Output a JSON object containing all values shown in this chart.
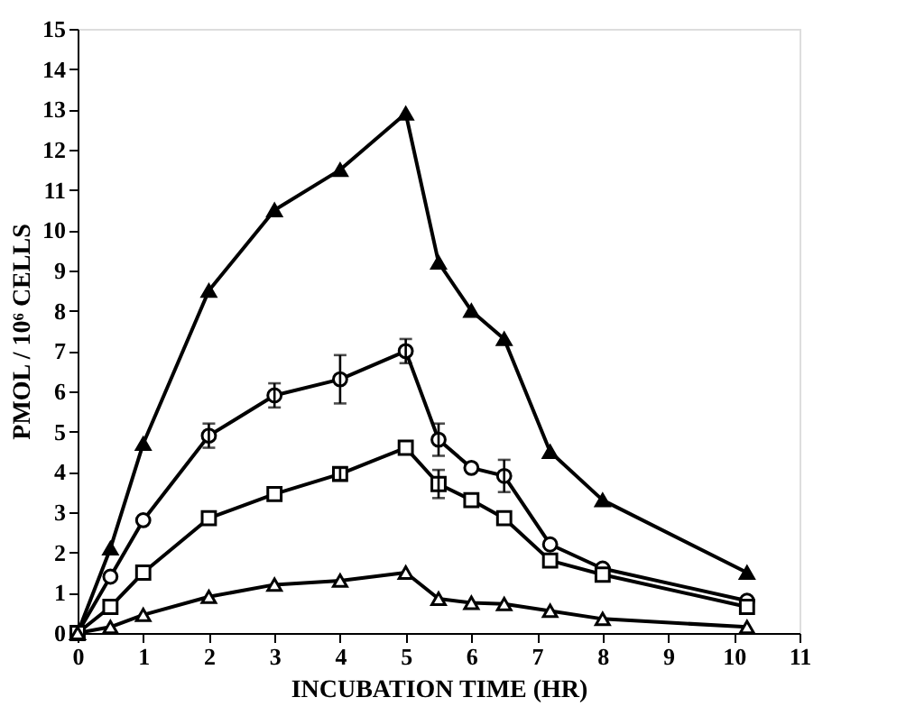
{
  "chart_data": {
    "type": "line",
    "xlabel": "INCUBATION TIME (HR)",
    "ylabel": "PMOL / 10⁶ CELLS",
    "xlim": [
      0,
      11
    ],
    "xticks": [
      0,
      1,
      2,
      3,
      4,
      5,
      6,
      7,
      8,
      9,
      10,
      11
    ],
    "ylim": [
      0,
      15
    ],
    "yticks": [
      0,
      1,
      2,
      3,
      4,
      5,
      6,
      7,
      8,
      9,
      10,
      11,
      12,
      13,
      14,
      15
    ],
    "grid": false,
    "legend": false,
    "line_style": "solid",
    "x": [
      0,
      0.5,
      1,
      2,
      3,
      4,
      5,
      5.5,
      6,
      6.5,
      7.2,
      8,
      10.2
    ],
    "series": [
      {
        "color": "#000000",
        "marker": "triangle",
        "values": [
          0,
          2.1,
          4.7,
          8.5,
          10.5,
          11.5,
          12.9,
          9.2,
          8.0,
          7.3,
          4.5,
          3.3,
          1.5
        ]
      },
      {
        "color": "#000000",
        "marker": "circle",
        "values": [
          0,
          1.4,
          2.8,
          4.9,
          5.9,
          6.3,
          7.0,
          4.8,
          4.1,
          3.9,
          2.2,
          1.6,
          0.8
        ],
        "errors": [
          null,
          null,
          null,
          0.3,
          0.3,
          0.6,
          0.3,
          0.4,
          null,
          0.4,
          null,
          null,
          null
        ]
      },
      {
        "color": "#000000",
        "marker": "square",
        "values": [
          0,
          0.65,
          1.5,
          2.85,
          3.45,
          3.95,
          4.6,
          3.7,
          3.3,
          2.85,
          1.8,
          1.45,
          0.65
        ],
        "errors": [
          null,
          null,
          null,
          null,
          null,
          0.15,
          null,
          0.35,
          null,
          null,
          null,
          null,
          null
        ]
      },
      {
        "color": "#000000",
        "marker": "triangle",
        "values": [
          0,
          0.15,
          0.45,
          0.9,
          1.2,
          1.3,
          1.5,
          0.85,
          0.75,
          0.72,
          0.55,
          0.35,
          0.15
        ]
      }
    ]
  }
}
